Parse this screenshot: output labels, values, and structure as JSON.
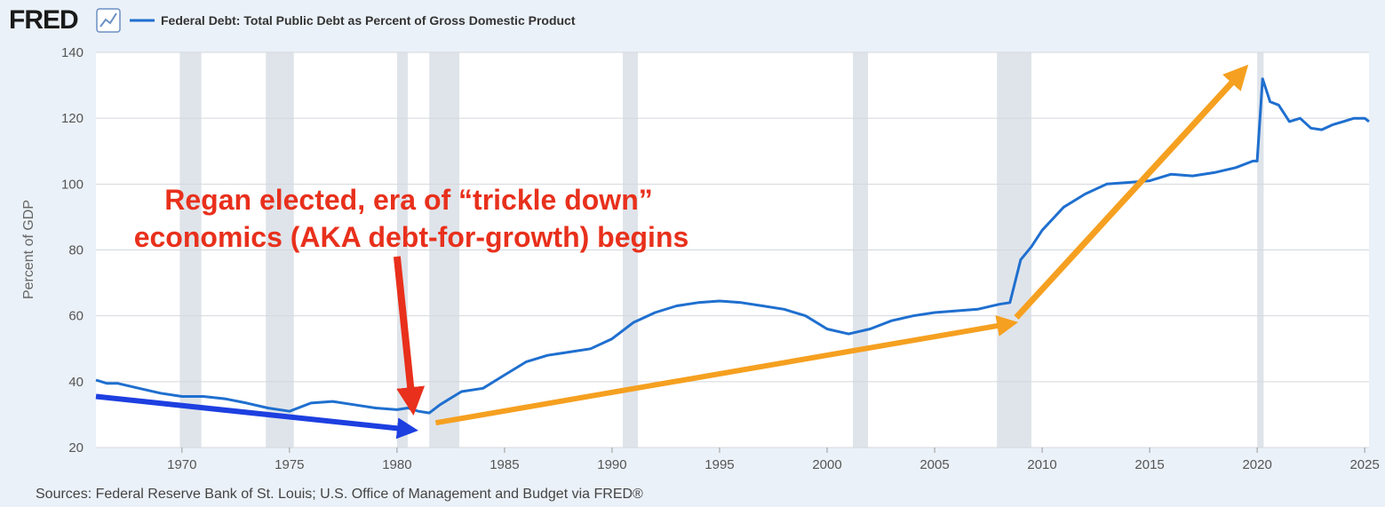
{
  "header": {
    "logo": "FRED"
  },
  "source": "Sources: Federal Reserve Bank of St. Louis; U.S. Office of Management and Budget via FRED®",
  "colors": {
    "series": "#1f6fcf",
    "recession": "#dfe4ea",
    "annotation": "#e8301c",
    "orange_arrow": "#f5a020",
    "blue_arrow": "#1d3fe0"
  },
  "chart_data": {
    "type": "line",
    "title": "",
    "legend": "Federal Debt: Total Public Debt as Percent of Gross Domestic Product",
    "ylabel": "Percent of GDP",
    "xlabel": "",
    "xlim": [
      1966,
      2025.2
    ],
    "ylim": [
      20,
      140
    ],
    "yticks": [
      20,
      40,
      60,
      80,
      100,
      120,
      140
    ],
    "xticks": [
      1970,
      1975,
      1980,
      1985,
      1990,
      1995,
      2000,
      2005,
      2010,
      2015,
      2020,
      2025
    ],
    "recessions": [
      [
        1969.9,
        1970.9
      ],
      [
        1973.9,
        1975.2
      ],
      [
        1980.0,
        1980.5
      ],
      [
        1981.5,
        1982.9
      ],
      [
        1990.5,
        1991.2
      ],
      [
        2001.2,
        2001.9
      ],
      [
        2007.9,
        2009.5
      ],
      [
        2020.0,
        2020.3
      ]
    ],
    "series": [
      {
        "name": "Federal Debt: Total Public Debt as Percent of Gross Domestic Product",
        "x": [
          1966,
          1966.5,
          1967,
          1968,
          1969,
          1970,
          1971,
          1972,
          1973,
          1974,
          1975,
          1976,
          1977,
          1978,
          1979,
          1980,
          1980.5,
          1981,
          1981.5,
          1982,
          1983,
          1984,
          1985,
          1986,
          1987,
          1988,
          1989,
          1990,
          1991,
          1992,
          1993,
          1994,
          1995,
          1996,
          1997,
          1998,
          1999,
          2000,
          2001,
          2002,
          2003,
          2004,
          2005,
          2006,
          2007,
          2008,
          2008.5,
          2009,
          2009.5,
          2010,
          2011,
          2012,
          2013,
          2014,
          2015,
          2016,
          2017,
          2018,
          2019,
          2019.8,
          2020.0,
          2020.25,
          2020.6,
          2021,
          2021.5,
          2022,
          2022.5,
          2023,
          2023.5,
          2024,
          2024.5,
          2025,
          2025.2
        ],
        "values": [
          40.5,
          39.5,
          39.5,
          38.0,
          36.5,
          35.5,
          35.5,
          34.8,
          33.5,
          32.0,
          31.0,
          33.5,
          34.0,
          33.0,
          32.0,
          31.5,
          32.0,
          31.0,
          30.5,
          33.0,
          37.0,
          38.0,
          42.0,
          46.0,
          48.0,
          49.0,
          50.0,
          53.0,
          58.0,
          61.0,
          63.0,
          64.0,
          64.5,
          64.0,
          63.0,
          62.0,
          60.0,
          56.0,
          54.5,
          56.0,
          58.5,
          60.0,
          61.0,
          61.5,
          62.0,
          63.5,
          64.0,
          77.0,
          81.0,
          86.0,
          93.0,
          97.0,
          100.0,
          100.5,
          101.0,
          103.0,
          102.5,
          103.5,
          105.0,
          107.0,
          107.0,
          132.0,
          125.0,
          124.0,
          119.0,
          120.0,
          117.0,
          116.5,
          118.0,
          119.0,
          120.0,
          120.0,
          119.0
        ]
      }
    ],
    "annotations": [
      {
        "text": "Regan elected, era of “trickle down”"
      },
      {
        "text": "economics (AKA debt-for-growth) begins"
      }
    ],
    "arrows": [
      {
        "name": "red-arrow",
        "from": [
          1980.0,
          78
        ],
        "to": [
          1980.7,
          34
        ]
      },
      {
        "name": "blue-arrow",
        "from": [
          1966,
          35.5
        ],
        "to": [
          1980.5,
          25.5
        ]
      },
      {
        "name": "orange-arrow-1",
        "from": [
          1981.8,
          27.5
        ],
        "to": [
          2008.4,
          57.5
        ]
      },
      {
        "name": "orange-arrow-2",
        "from": [
          2008.8,
          59.5
        ],
        "to": [
          2019.2,
          133.5
        ]
      }
    ]
  }
}
